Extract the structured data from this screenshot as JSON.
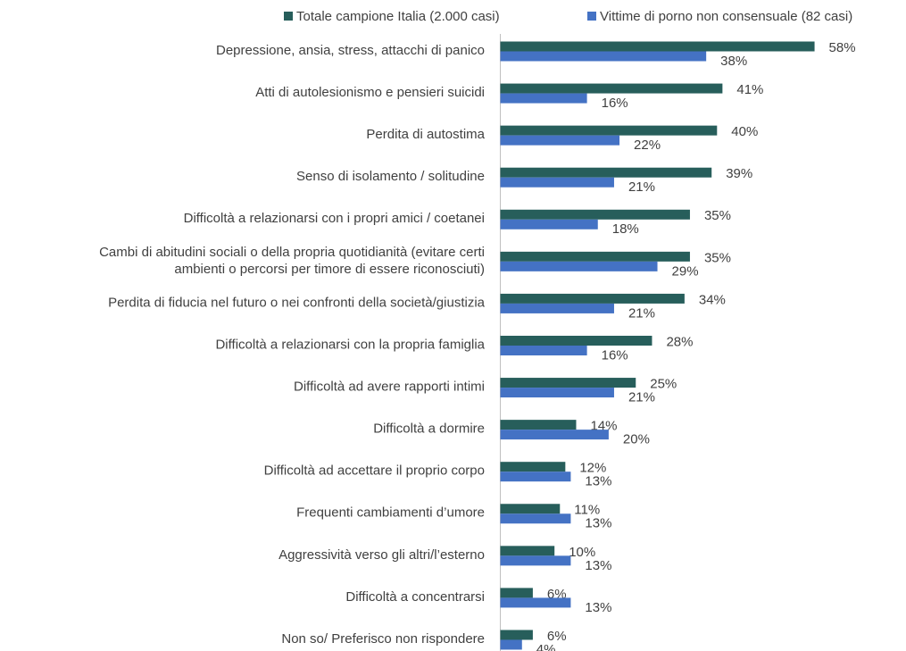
{
  "chart_data": {
    "type": "bar",
    "orientation": "horizontal",
    "categories": [
      "Depressione, ansia, stress, attacchi di panico",
      "Atti di autolesionismo e pensieri suicidi",
      "Perdita di autostima",
      "Senso di isolamento / solitudine",
      "Difficoltà a relazionarsi con i propri amici / coetanei",
      "Cambi di abitudini sociali o della propria quotidianità (evitare certi\nambienti o percorsi per timore di essere riconosciuti)",
      "Perdita di fiducia nel futuro o nei confronti della società/giustizia",
      "Difficoltà a relazionarsi con la propria famiglia",
      "Difficoltà ad avere rapporti intimi",
      "Difficoltà a dormire",
      "Difficoltà ad accettare il proprio corpo",
      "Frequenti cambiamenti d’umore",
      "Aggressività verso gli altri/l’esterno",
      "Difficoltà a concentrarsi",
      "Non so/ Preferisco non rispondere"
    ],
    "series": [
      {
        "name": "Totale campione Italia (2.000 casi)",
        "color": "#275e5b",
        "values": [
          58,
          41,
          40,
          39,
          35,
          35,
          34,
          28,
          25,
          14,
          12,
          11,
          10,
          6,
          6
        ],
        "value_labels": [
          "58%",
          "41%",
          "40%",
          "39%",
          "35%",
          "35%",
          "34%",
          "28%",
          "25%",
          "14%",
          "12%",
          "11%",
          "10%",
          "6%",
          "6%"
        ]
      },
      {
        "name": "Vittime di porno non consensuale (82 casi)",
        "color": "#4472c4",
        "values": [
          38,
          16,
          22,
          21,
          18,
          29,
          21,
          16,
          21,
          20,
          13,
          13,
          13,
          13,
          4
        ],
        "value_labels": [
          "38%",
          "16%",
          "22%",
          "21%",
          "18%",
          "29%",
          "21%",
          "16%",
          "21%",
          "20%",
          "13%",
          "13%",
          "13%",
          "13%",
          "4%"
        ]
      }
    ],
    "legend": "top"
  }
}
